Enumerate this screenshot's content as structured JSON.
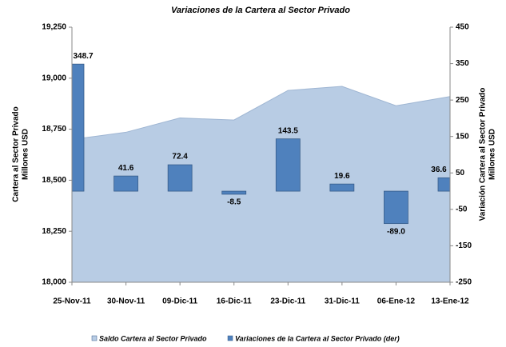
{
  "chart_data": {
    "type": "area-bar",
    "title": "Variaciones de la Cartera al Sector Privado",
    "y_label": [
      "Cartera al Sector Privado",
      "Millones USD"
    ],
    "y2_label": [
      "Variación Cartera al Sector Privado",
      "Millones USD"
    ],
    "categories": [
      "25-Nov-11",
      "30-Nov-11",
      "09-Dic-11",
      "16-Dic-11",
      "23-Dic-11",
      "31-Dic-11",
      "06-Ene-12",
      "13-Ene-12"
    ],
    "series": [
      {
        "name": "Saldo Cartera al Sector Privado",
        "type": "area",
        "color": "#b8cce4",
        "axis": "y",
        "values": [
          18700,
          18735,
          18805,
          18795,
          18940,
          18960,
          18865,
          18910
        ]
      },
      {
        "name": "Variaciones de la Cartera al Sector Privado (der)",
        "type": "bar",
        "color": "#4f81bd",
        "axis": "y2",
        "values": [
          348.7,
          41.6,
          72.4,
          -8.5,
          143.5,
          19.6,
          -89,
          36.6
        ],
        "value_labels": [
          "348.7",
          "41.6",
          "72.4",
          "-8.5",
          "143.5",
          "19.6",
          "-89.0",
          "36.6"
        ]
      }
    ],
    "ylim": [
      18000,
      19250
    ],
    "yticks": [
      {
        "value": 18000,
        "label": "18,000"
      },
      {
        "value": 18250,
        "label": "18,250"
      },
      {
        "value": 18500,
        "label": "18,500"
      },
      {
        "value": 18750,
        "label": "18,750"
      },
      {
        "value": 19000,
        "label": "19,000"
      },
      {
        "value": 19250,
        "label": "19,250"
      }
    ],
    "y2lim": [
      -250,
      450
    ],
    "y2ticks": [
      -250,
      -150,
      -50,
      50,
      150,
      250,
      350,
      450
    ],
    "legend": "bottom"
  }
}
